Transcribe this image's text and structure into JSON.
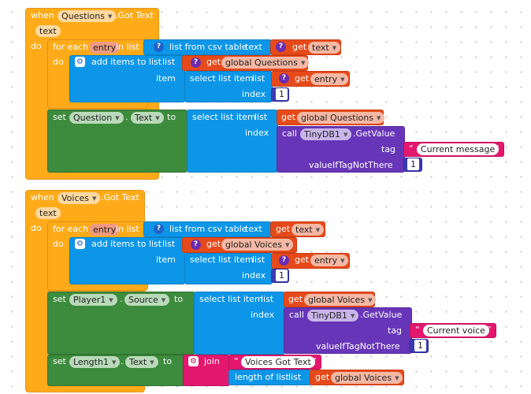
{
  "ev1": {
    "when": "when",
    "component": "Questions",
    "event": ".Got Text",
    "param": "text",
    "do": "do",
    "foreach": "for each",
    "var": "entry",
    "in_list": "in list",
    "list_from_csv": "list from csv table",
    "text_kw": "text",
    "get": "get",
    "get_var": "text",
    "do2": "do",
    "add_items": "add items to list",
    "list_kw": "list",
    "global_list": "global Questions",
    "item_kw": "item",
    "select_item": "select list item",
    "entry_var": "entry",
    "index_kw": "index",
    "index_val": "1",
    "set": "set",
    "set_component": "Question",
    "set_prop": "Text",
    "to": "to",
    "select_item2": "select list item",
    "list_kw2": "list",
    "global_list2": "global Questions",
    "index_kw2": "index",
    "call": "call",
    "tinydb": "TinyDB1",
    "get_value": ".GetValue",
    "tag": "tag",
    "tag_value": "Current message",
    "value_if": "valueIfTagNotThere",
    "default_val": "1"
  },
  "ev2": {
    "when": "when",
    "component": "Voices",
    "event": ".Got Text",
    "param": "text",
    "do": "do",
    "foreach": "for each",
    "var": "entry",
    "in_list": "in list",
    "list_from_csv": "list from csv table",
    "text_kw": "text",
    "get": "get",
    "get_var": "text",
    "do2": "do",
    "add_items": "add items to list",
    "list_kw": "list",
    "global_list": "global Voices",
    "item_kw": "item",
    "select_item": "select list item",
    "entry_var": "entry",
    "index_kw": "index",
    "index_val": "1",
    "set": "set",
    "set_component": "Player1",
    "set_prop": "Source",
    "to": "to",
    "select_item2": "select list item",
    "list_kw2": "list",
    "global_list2": "global Voices",
    "index_kw2": "index",
    "call": "call",
    "tinydb": "TinyDB1",
    "get_value": ".GetValue",
    "tag": "tag",
    "tag_value": "Current voice",
    "value_if": "valueIfTagNotThere",
    "default_val": "1",
    "set2": "set",
    "set2_component": "Length1",
    "set2_prop": "Text",
    "to2": "to",
    "join": "join",
    "join_str": "Voices Got Text",
    "length_of_list": "length of list",
    "list_kw3": "list",
    "global_list3": "global Voices"
  },
  "icons": {
    "question": "question-mark-icon",
    "gear": "gear-icon",
    "dropdown": "triangle-down-icon"
  }
}
